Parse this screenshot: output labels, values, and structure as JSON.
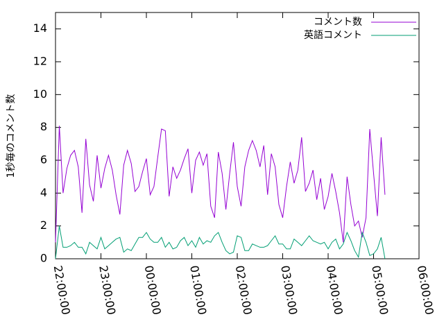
{
  "chart_data": {
    "type": "line",
    "ylabel": "1秒毎のコメント数",
    "x": [
      0,
      5,
      10,
      15,
      20,
      25,
      30,
      35,
      40,
      45,
      50,
      55,
      60,
      65,
      70,
      75,
      80,
      85,
      90,
      95,
      100,
      105,
      110,
      115,
      120,
      125,
      130,
      135,
      140,
      145,
      150,
      155,
      160,
      165,
      170,
      175,
      180,
      185,
      190,
      195,
      200,
      205,
      210,
      215,
      220,
      225,
      230,
      235,
      240,
      245,
      250,
      255,
      260,
      265,
      270,
      275,
      280,
      285,
      290,
      295,
      300,
      305,
      310,
      315,
      320,
      325,
      330,
      335,
      340,
      345,
      350,
      355,
      360,
      365,
      370,
      375,
      380,
      385,
      390,
      395,
      400,
      405,
      410,
      415,
      420,
      425,
      430,
      435
    ],
    "series": [
      {
        "name": "コメント数",
        "color": "#9400d3",
        "values": [
          1.0,
          8.1,
          4.0,
          5.5,
          6.3,
          6.6,
          5.6,
          2.8,
          7.3,
          4.5,
          3.5,
          6.3,
          4.3,
          5.5,
          6.3,
          5.4,
          3.9,
          2.7,
          5.7,
          6.6,
          5.8,
          4.1,
          4.4,
          5.3,
          6.1,
          3.9,
          4.4,
          6.2,
          7.9,
          7.8,
          3.8,
          5.6,
          4.9,
          5.4,
          6.1,
          6.7,
          4.0,
          6.0,
          6.5,
          5.7,
          6.4,
          3.2,
          2.5,
          6.5,
          5.2,
          3.0,
          5.2,
          7.1,
          4.4,
          3.2,
          5.6,
          6.6,
          7.2,
          6.6,
          5.6,
          6.9,
          3.9,
          6.4,
          5.6,
          3.3,
          2.5,
          4.4,
          5.9,
          4.6,
          5.4,
          7.4,
          4.1,
          4.6,
          5.4,
          3.6,
          4.9,
          3.0,
          3.8,
          5.2,
          4.1,
          2.8,
          1.0,
          5.0,
          3.3,
          2.0,
          2.3,
          1.3,
          2.5,
          7.9,
          5.2,
          2.6,
          7.4,
          3.9
        ]
      },
      {
        "name": "英語コメント",
        "color": "#009e73",
        "values": [
          0.0,
          2.0,
          0.7,
          0.7,
          0.8,
          1.0,
          0.7,
          0.7,
          0.3,
          1.0,
          0.8,
          0.6,
          1.3,
          0.6,
          0.8,
          1.0,
          1.2,
          1.3,
          0.4,
          0.6,
          0.5,
          0.9,
          1.3,
          1.3,
          1.6,
          1.2,
          1.0,
          1.0,
          1.3,
          0.7,
          1.0,
          0.6,
          0.7,
          1.1,
          1.3,
          0.8,
          1.1,
          0.7,
          1.3,
          0.9,
          1.1,
          1.0,
          1.4,
          1.6,
          1.0,
          0.5,
          0.3,
          0.4,
          1.4,
          1.3,
          0.5,
          0.5,
          0.9,
          0.8,
          0.7,
          0.7,
          0.8,
          1.1,
          1.4,
          0.9,
          0.9,
          0.6,
          0.6,
          1.2,
          1.0,
          0.8,
          1.1,
          1.4,
          1.1,
          1.0,
          0.9,
          1.0,
          0.6,
          1.0,
          1.2,
          0.6,
          0.9,
          1.6,
          1.1,
          0.5,
          0.1,
          1.6,
          1.0,
          0.2,
          0.3,
          0.6,
          1.3,
          0.0
        ]
      }
    ],
    "xlim": [
      0,
      480
    ],
    "xticks": [
      {
        "value": 0,
        "label": "22:00:00"
      },
      {
        "value": 60,
        "label": "23:00:00"
      },
      {
        "value": 120,
        "label": "00:00:00"
      },
      {
        "value": 180,
        "label": "01:00:00"
      },
      {
        "value": 240,
        "label": "02:00:00"
      },
      {
        "value": 300,
        "label": "03:00:00"
      },
      {
        "value": 360,
        "label": "04:00:00"
      },
      {
        "value": 420,
        "label": "05:00:00"
      },
      {
        "value": 480,
        "label": "06:00:00"
      }
    ],
    "ylim": [
      0,
      15
    ],
    "yticks": [
      0,
      2,
      4,
      6,
      8,
      10,
      12,
      14
    ],
    "grid": false,
    "legend": "top-right"
  }
}
